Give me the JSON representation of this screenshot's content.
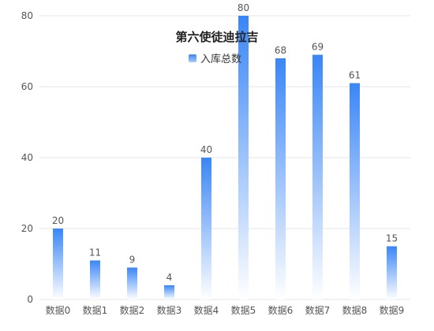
{
  "chart_data": {
    "type": "bar",
    "title": "第六使徒迪拉吉",
    "categories": [
      "数据0",
      "数据1",
      "数据2",
      "数据3",
      "数据4",
      "数据5",
      "数据6",
      "数据7",
      "数据8",
      "数据9"
    ],
    "series": [
      {
        "name": "入库总数",
        "values": [
          20,
          11,
          9,
          4,
          40,
          80,
          68,
          69,
          61,
          15
        ]
      }
    ],
    "ylim": [
      0,
      80
    ],
    "yticks": [
      0,
      20,
      40,
      60,
      80
    ],
    "grid": true,
    "legend_position": "top-center",
    "colors": {
      "bar_top": "#3a86f6",
      "bar_bottom": "#ffffff",
      "grid": "#e6e6e6",
      "legend_swatch": "#3a86f6"
    }
  }
}
